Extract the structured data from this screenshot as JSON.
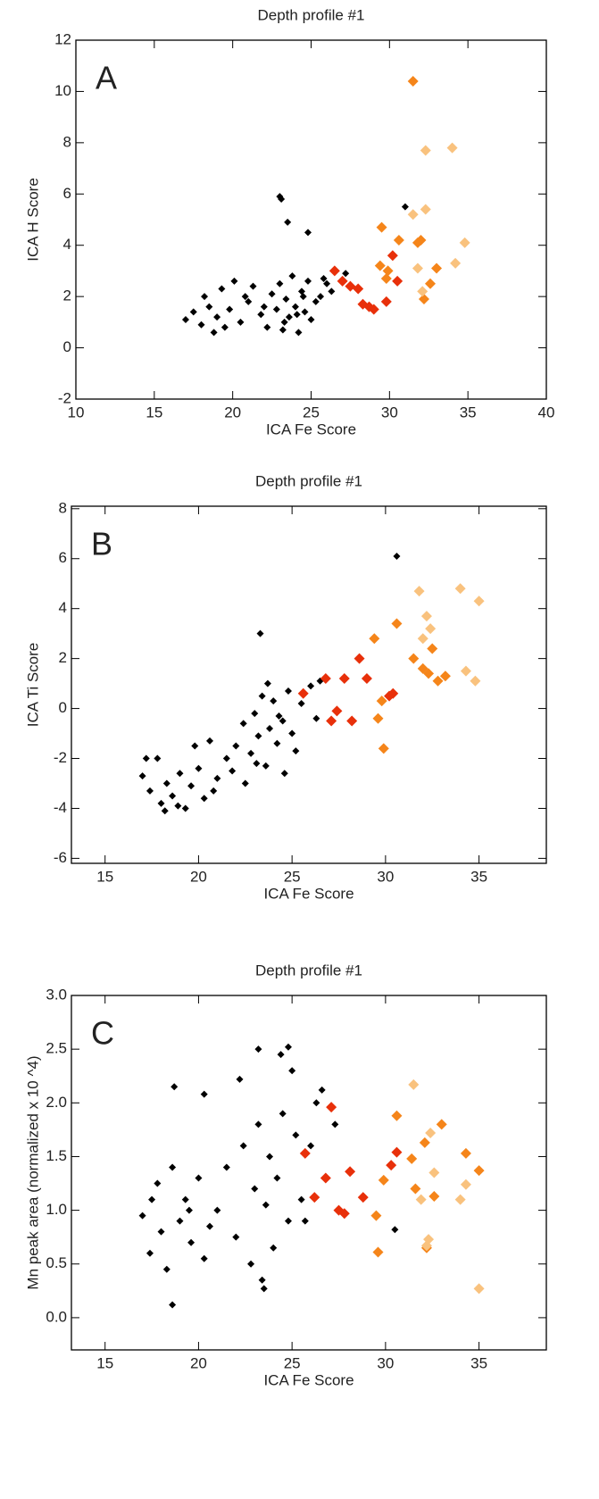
{
  "chart_data": [
    {
      "type": "scatter",
      "title": "Depth profile #1",
      "annotation": "A",
      "xlabel": "ICA Fe Score",
      "ylabel": "ICA H Score",
      "xlim": [
        10,
        40
      ],
      "ylim": [
        -2,
        12
      ],
      "xticks": [
        10,
        15,
        20,
        25,
        30,
        35,
        40
      ],
      "yticks": [
        -2,
        0,
        2,
        4,
        6,
        8,
        10,
        12
      ],
      "series": [
        {
          "color": "#000000",
          "x": [
            17,
            17.5,
            18,
            18.2,
            18.5,
            19,
            19.3,
            19.8,
            20.1,
            20.5,
            21,
            21.3,
            21.8,
            22.2,
            22.5,
            22.8,
            23,
            23.2,
            23.4,
            23.6,
            23.8,
            24,
            24.2,
            24.4,
            24.6,
            24.8,
            25,
            25.3,
            25.6,
            26,
            26.3,
            18.8,
            19.5,
            20.8,
            22,
            23.3,
            24.1,
            24.5,
            25.8,
            27.2,
            23,
            23.1,
            23.5,
            24.8,
            31
          ],
          "y": [
            1.1,
            1.4,
            0.9,
            2.0,
            1.6,
            1.2,
            2.3,
            1.5,
            2.6,
            1.0,
            1.8,
            2.4,
            1.3,
            0.8,
            2.1,
            1.5,
            2.5,
            0.7,
            1.9,
            1.2,
            2.8,
            1.6,
            0.6,
            2.2,
            1.4,
            2.6,
            1.1,
            1.8,
            2.0,
            2.5,
            2.2,
            0.6,
            0.8,
            2.0,
            1.6,
            1.0,
            1.3,
            2.0,
            2.7,
            2.9,
            5.9,
            5.8,
            4.9,
            4.5,
            5.5
          ]
        },
        {
          "color": "#e8300a",
          "x": [
            26.5,
            27,
            27.5,
            28,
            28.3,
            28.7,
            29,
            29.8,
            30.2,
            30.5
          ],
          "y": [
            3.0,
            2.6,
            2.4,
            2.3,
            1.7,
            1.6,
            1.5,
            1.8,
            3.6,
            2.6
          ]
        },
        {
          "color": "#f5851a",
          "x": [
            29.4,
            29.5,
            29.8,
            29.9,
            30.6,
            31.8,
            32,
            32.2,
            32.6,
            33,
            31.5
          ],
          "y": [
            3.2,
            4.7,
            2.7,
            3.0,
            4.2,
            4.1,
            4.2,
            1.9,
            2.5,
            3.1,
            10.4
          ]
        },
        {
          "color": "#f9c27e",
          "x": [
            31.5,
            31.8,
            32.1,
            32.3,
            32.3,
            34,
            34.2,
            34.8
          ],
          "y": [
            5.2,
            3.1,
            2.2,
            7.7,
            5.4,
            7.8,
            3.3,
            4.1
          ]
        }
      ]
    },
    {
      "type": "scatter",
      "title": "Depth profile #1",
      "annotation": "B",
      "xlabel": "ICA Fe Score",
      "ylabel": "ICA Ti Score",
      "xlim": [
        13.2,
        38.6
      ],
      "ylim": [
        -6.2,
        8.1
      ],
      "xticks": [
        15,
        20,
        25,
        30,
        35
      ],
      "yticks": [
        -6,
        -4,
        -2,
        0,
        2,
        4,
        6,
        8
      ],
      "series": [
        {
          "color": "#000000",
          "x": [
            17,
            17.4,
            17.8,
            18,
            18.3,
            18.6,
            19,
            19.3,
            19.6,
            20,
            20.3,
            20.6,
            21,
            21.5,
            22,
            22.4,
            22.8,
            23,
            23.2,
            23.4,
            23.6,
            23.8,
            24,
            24.2,
            24.5,
            24.8,
            25.2,
            25.5,
            26,
            26.3,
            18.2,
            19.8,
            20.8,
            21.8,
            23.1,
            23.7,
            24.3,
            25,
            26.5,
            23.3,
            30.6,
            17.2,
            18.9,
            22.5,
            24.6
          ],
          "y": [
            -2.7,
            -3.3,
            -2.0,
            -3.8,
            -3.0,
            -3.5,
            -2.6,
            -4.0,
            -3.1,
            -2.4,
            -3.6,
            -1.3,
            -2.8,
            -2.0,
            -1.5,
            -0.6,
            -1.8,
            -0.2,
            -1.1,
            0.5,
            -2.3,
            -0.8,
            0.3,
            -1.4,
            -0.5,
            0.7,
            -1.7,
            0.2,
            0.9,
            -0.4,
            -4.1,
            -1.5,
            -3.3,
            -2.5,
            -2.2,
            1.0,
            -0.3,
            -1.0,
            1.1,
            3.0,
            6.1,
            -2.0,
            -3.9,
            -3.0,
            -2.6
          ]
        },
        {
          "color": "#e8300a",
          "x": [
            25.6,
            26.8,
            27.1,
            27.8,
            28.2,
            28.6,
            29,
            30.2,
            30.4,
            27.4
          ],
          "y": [
            0.6,
            1.2,
            -0.5,
            1.2,
            -0.5,
            2.0,
            1.2,
            0.5,
            0.6,
            -0.1
          ]
        },
        {
          "color": "#f5851a",
          "x": [
            29.4,
            29.6,
            29.8,
            30.6,
            31.5,
            32,
            32.3,
            32.5,
            32.8,
            33.2,
            29.9
          ],
          "y": [
            2.8,
            -0.4,
            0.3,
            3.4,
            2.0,
            1.6,
            1.4,
            2.4,
            1.1,
            1.3,
            -1.6
          ]
        },
        {
          "color": "#f9c27e",
          "x": [
            31.8,
            32.2,
            32.4,
            34,
            34.3,
            35,
            32,
            34.8
          ],
          "y": [
            4.7,
            3.7,
            3.2,
            4.8,
            1.5,
            4.3,
            2.8,
            1.1
          ]
        }
      ]
    },
    {
      "type": "scatter",
      "title": "Depth profile #1",
      "annotation": "C",
      "xlabel": "ICA Fe Score",
      "ylabel": "Mn peak area (normalized x 10 ^4)",
      "xlim": [
        13.2,
        38.6
      ],
      "ylim": [
        -0.3,
        3.0
      ],
      "xticks": [
        15,
        20,
        25,
        30,
        35
      ],
      "yticks": [
        {
          "value": 0,
          "label": "0.0"
        },
        0.5,
        {
          "value": 1,
          "label": "1.0"
        },
        1.5,
        {
          "value": 2,
          "label": "2.0"
        },
        2.5,
        {
          "value": 3,
          "label": "3.0"
        }
      ],
      "series": [
        {
          "color": "#000000",
          "x": [
            17,
            17.4,
            17.8,
            18,
            18.3,
            18.6,
            19,
            19.3,
            19.6,
            20,
            20.3,
            20.6,
            21,
            21.5,
            22,
            22.4,
            22.8,
            23,
            23.2,
            23.4,
            23.6,
            23.8,
            24,
            24.2,
            24.5,
            24.8,
            25.2,
            25.5,
            26,
            26.3,
            18.7,
            18.6,
            20.3,
            22.2,
            23.2,
            24.4,
            24.8,
            25,
            26.6,
            27.3,
            30.5,
            17.5,
            19.5,
            23.5,
            25.7
          ],
          "y": [
            0.95,
            0.6,
            1.25,
            0.8,
            0.45,
            1.4,
            0.9,
            1.1,
            0.7,
            1.3,
            0.55,
            0.85,
            1.0,
            1.4,
            0.75,
            1.6,
            0.5,
            1.2,
            1.8,
            0.35,
            1.05,
            1.5,
            0.65,
            1.3,
            1.9,
            0.9,
            1.7,
            1.1,
            1.6,
            2.0,
            2.15,
            0.12,
            2.08,
            2.22,
            2.5,
            2.45,
            2.52,
            2.3,
            2.12,
            1.8,
            0.82,
            1.1,
            1.0,
            0.27,
            0.9
          ]
        },
        {
          "color": "#e8300a",
          "x": [
            25.7,
            26.2,
            26.8,
            27.1,
            27.8,
            28.1,
            28.8,
            30.3,
            30.6,
            27.5
          ],
          "y": [
            1.53,
            1.12,
            1.3,
            1.96,
            0.97,
            1.36,
            1.12,
            1.42,
            1.54,
            1.0
          ]
        },
        {
          "color": "#f5851a",
          "x": [
            29.5,
            29.6,
            29.9,
            30.6,
            31.4,
            31.6,
            32.2,
            32.6,
            33,
            34.3,
            35,
            32.1
          ],
          "y": [
            0.95,
            0.61,
            1.28,
            1.88,
            1.48,
            1.2,
            0.65,
            1.13,
            1.8,
            1.53,
            1.37,
            1.63
          ]
        },
        {
          "color": "#f9c27e",
          "x": [
            31.5,
            32.4,
            31.9,
            32.3,
            32.6,
            34,
            34.3,
            35,
            32.2
          ],
          "y": [
            2.17,
            1.72,
            1.1,
            0.73,
            1.35,
            1.1,
            1.24,
            0.27,
            0.67
          ]
        }
      ]
    }
  ]
}
